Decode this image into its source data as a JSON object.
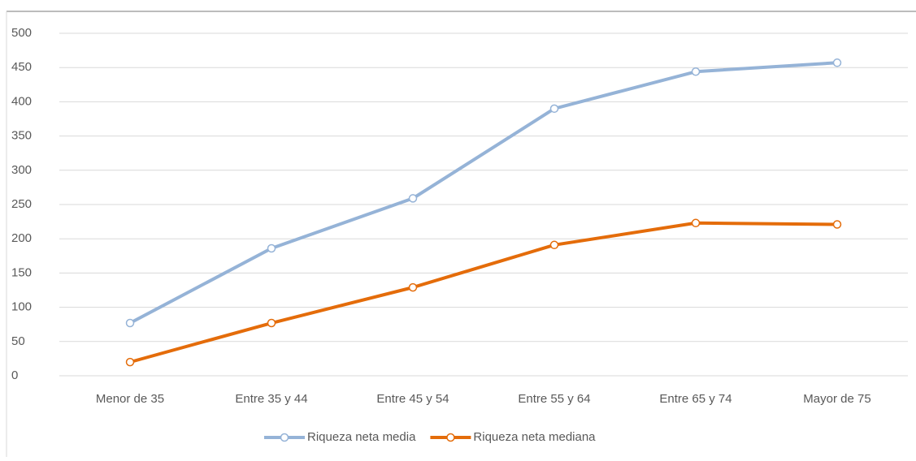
{
  "chart_data": {
    "type": "line",
    "categories": [
      "Menor de 35",
      "Entre 35 y 44",
      "Entre 45 y 54",
      "Entre 55 y 64",
      "Entre 65 y 74",
      "Mayor de 75"
    ],
    "series": [
      {
        "name": "Riqueza neta media",
        "color": "#95b3d7",
        "values": [
          77,
          186,
          259,
          390,
          444,
          457
        ]
      },
      {
        "name": "Riqueza neta mediana",
        "color": "#e46c0a",
        "values": [
          20,
          77,
          129,
          191,
          223,
          221
        ]
      }
    ],
    "ylim": [
      0,
      500
    ],
    "yticks": [
      0,
      50,
      100,
      150,
      200,
      250,
      300,
      350,
      400,
      450,
      500
    ],
    "grid": true,
    "legend": "bottom"
  }
}
